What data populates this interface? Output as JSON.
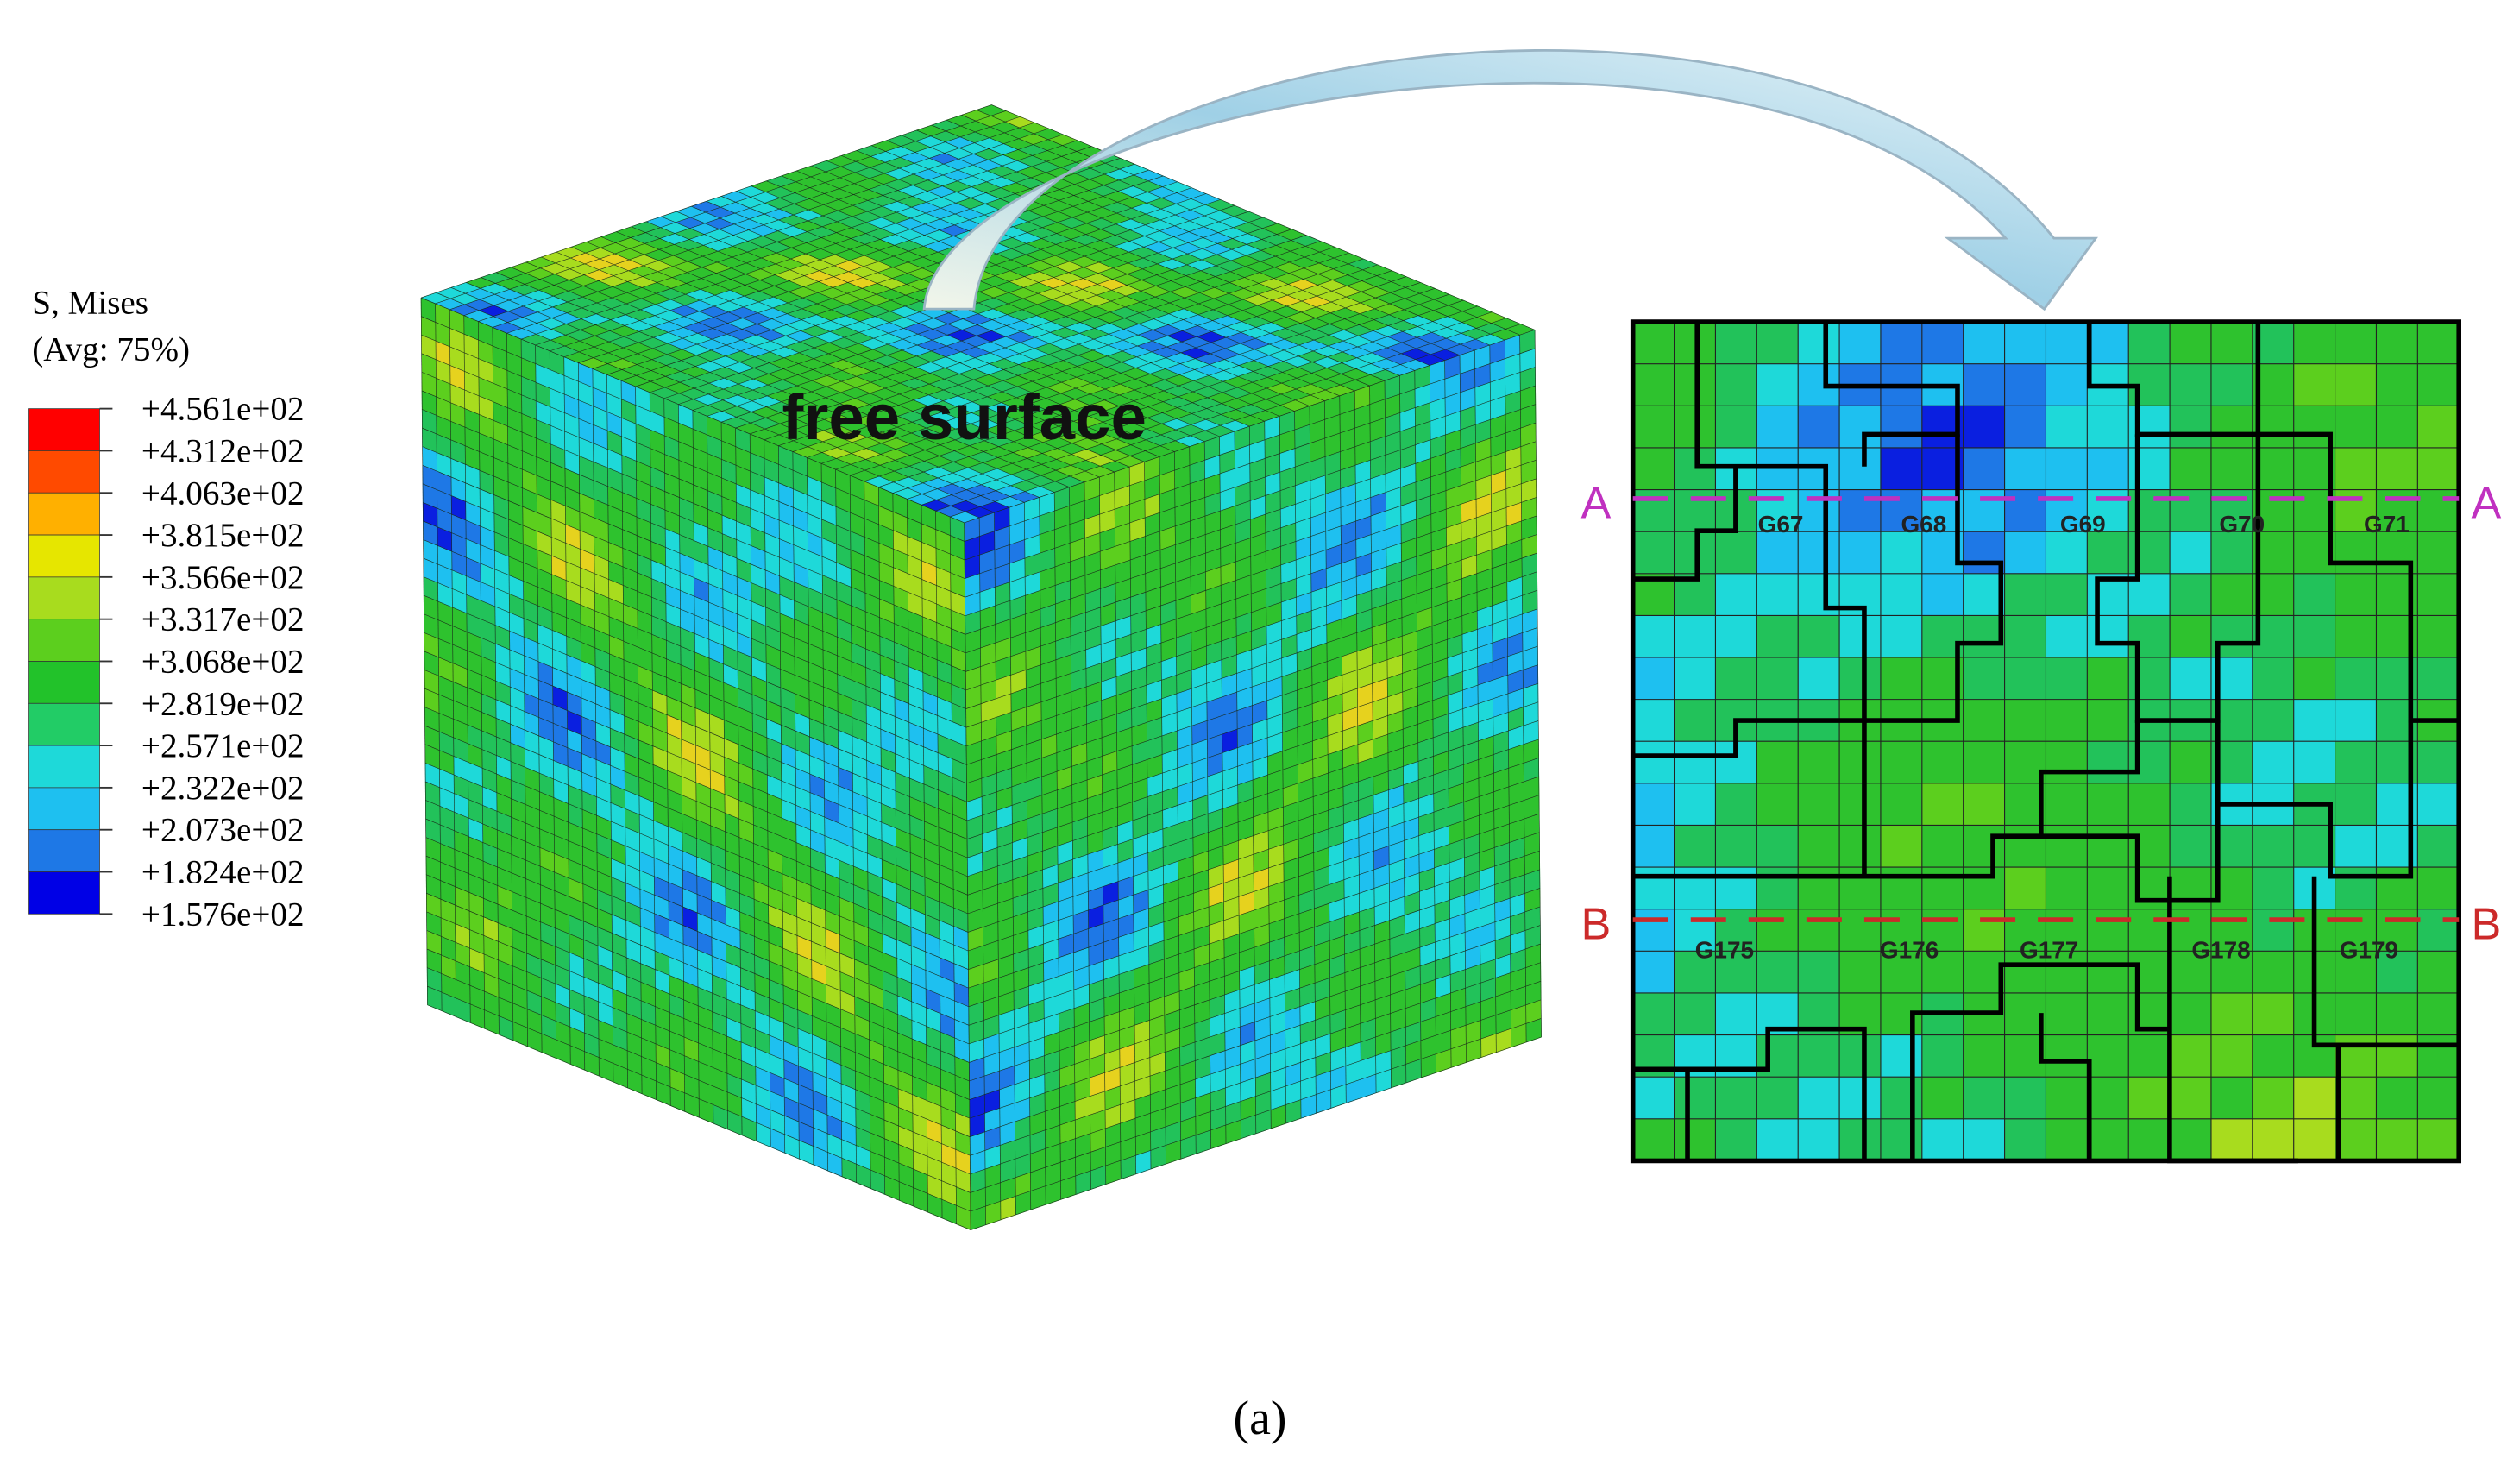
{
  "legend": {
    "title": "S, Mises",
    "subtitle": "(Avg: 75%)",
    "labels": [
      "+4.561e+02",
      "+4.312e+02",
      "+4.063e+02",
      "+3.815e+02",
      "+3.566e+02",
      "+3.317e+02",
      "+3.068e+02",
      "+2.819e+02",
      "+2.571e+02",
      "+2.322e+02",
      "+2.073e+02",
      "+1.824e+02",
      "+1.576e+02"
    ]
  },
  "cube": {
    "label": "free surface"
  },
  "section": {
    "line_a": [
      "A",
      "A"
    ],
    "line_b": [
      "B",
      "B"
    ],
    "row_a": [
      "G67",
      "G68",
      "G69",
      "G70",
      "G71"
    ],
    "row_b": [
      "G175",
      "G176",
      "G177",
      "G178",
      "G179"
    ]
  },
  "caption": "(a)"
}
